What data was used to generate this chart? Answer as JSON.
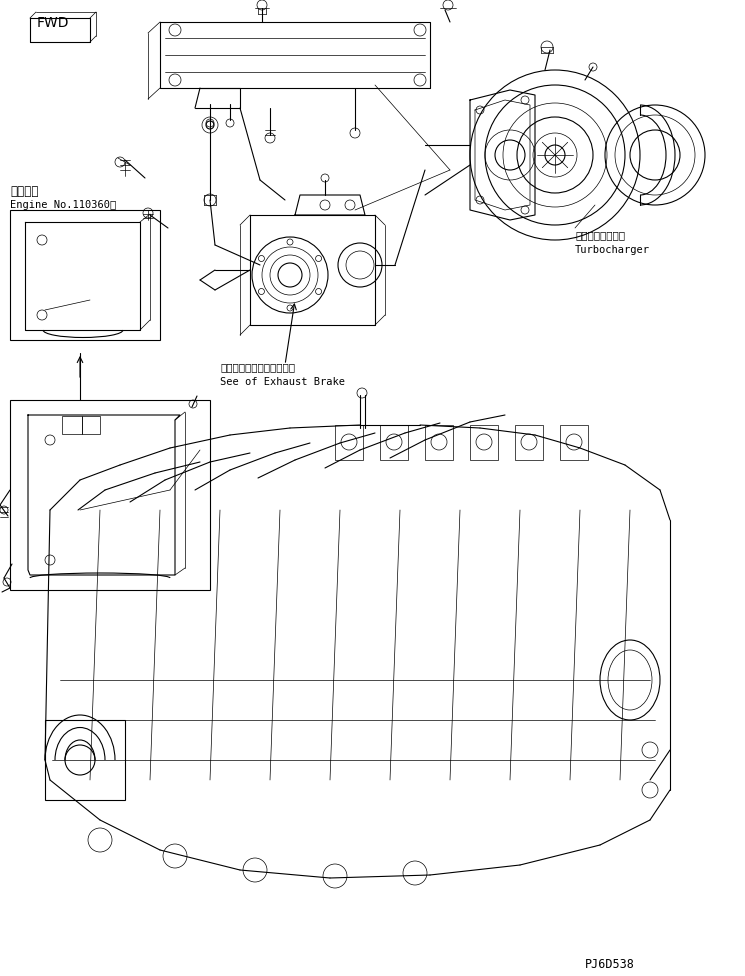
{
  "fig_width": 7.45,
  "fig_height": 9.76,
  "dpi": 100,
  "bg_color": "#ffffff",
  "line_color": "#000000",
  "lw": 0.8,
  "tlw": 0.5,
  "title_code": "PJ6D538",
  "label_fwd": "FWD",
  "label_applicable": "適用号機",
  "label_engine": "Engine No.110360～",
  "label_turbo_jp": "ターボチャージャ",
  "label_turbo_en": "Turbocharger",
  "label_exhaust_jp": "エキゾーストブレーキ参照",
  "label_exhaust_en": "See of Exhaust Brake",
  "font_size_tiny": 6.5,
  "font_size_small": 7.5,
  "font_size_medium": 8.5,
  "font_size_large": 10
}
